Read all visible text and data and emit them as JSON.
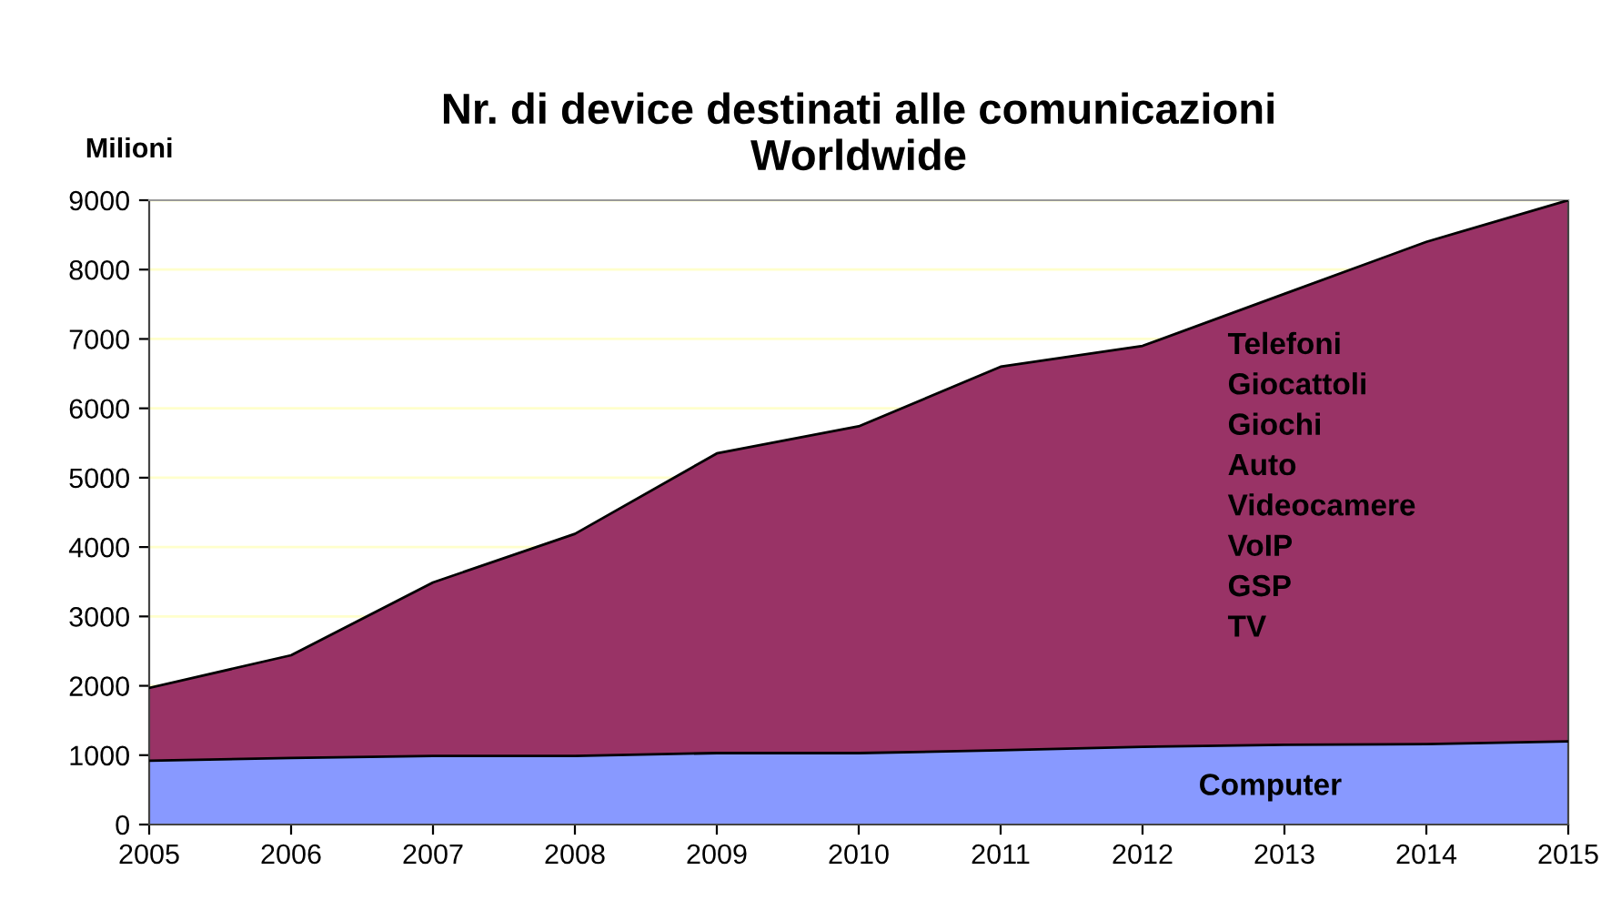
{
  "chart_data": {
    "type": "area",
    "stacked": true,
    "title": "Nr. di device destinati alle comunicazioni\nWorldwide",
    "ylabel": "Milioni",
    "x": [
      2005,
      2006,
      2007,
      2008,
      2009,
      2010,
      2011,
      2012,
      2013,
      2014,
      2015
    ],
    "series": [
      {
        "name": "Computer",
        "color": "#8899ff",
        "values": [
          920,
          960,
          990,
          990,
          1030,
          1030,
          1070,
          1120,
          1150,
          1160,
          1200
        ]
      },
      {
        "name": "Telefoni\nGiocattoli\nGiochi\nAuto\nVideocamere\nVoIP\nGSP\nTV",
        "color": "#993366",
        "values": [
          1050,
          1480,
          2500,
          3200,
          4320,
          4710,
          5530,
          5780,
          6500,
          7240,
          7800
        ]
      }
    ],
    "xlim": [
      2005,
      2015
    ],
    "xticks": [
      2005,
      2006,
      2007,
      2008,
      2009,
      2010,
      2011,
      2012,
      2013,
      2014,
      2015
    ],
    "ylim": [
      0,
      9000
    ],
    "yticks": [
      0,
      1000,
      2000,
      3000,
      4000,
      5000,
      6000,
      7000,
      8000,
      9000
    ],
    "grid": "y",
    "legend": false
  }
}
